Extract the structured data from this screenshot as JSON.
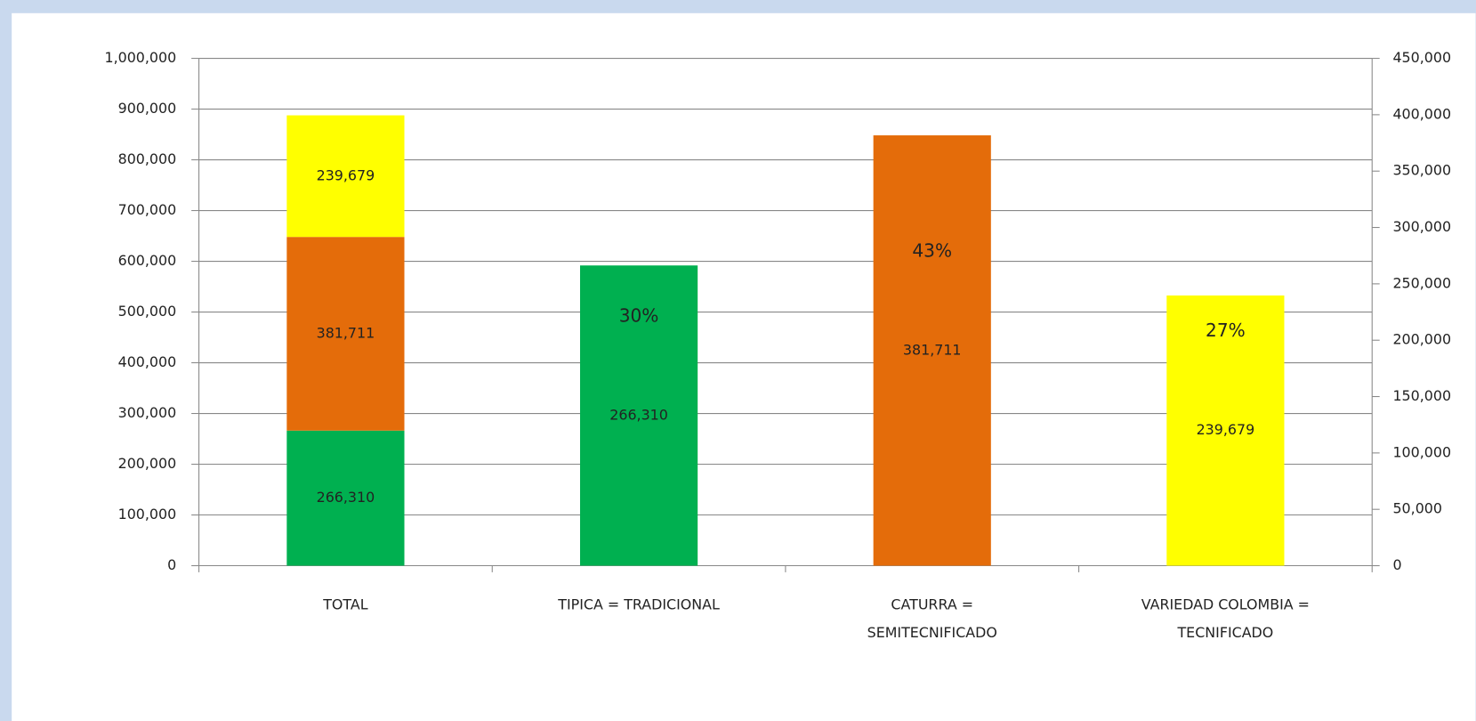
{
  "chart_data": {
    "type": "bar",
    "categories": [
      [
        "TOTAL"
      ],
      [
        "TIPICA = TRADICIONAL"
      ],
      [
        "CATURRA =",
        "SEMITECNIFICADO"
      ],
      [
        "VARIEDAD COLOMBIA =",
        "TECNIFICADO"
      ]
    ],
    "series": [
      {
        "color": "#00b050",
        "axis": "y",
        "stacked": true,
        "values": [
          266310,
          null,
          null,
          null
        ],
        "value_labels": [
          "266,310",
          null,
          null,
          null
        ]
      },
      {
        "color": "#e46c0a",
        "axis": "y",
        "stacked": true,
        "values": [
          381711,
          null,
          null,
          null
        ],
        "value_labels": [
          "381,711",
          null,
          null,
          null
        ]
      },
      {
        "color": "#ffff00",
        "axis": "y",
        "stacked": true,
        "values": [
          239679,
          null,
          null,
          null
        ],
        "value_labels": [
          "239,679",
          null,
          null,
          null
        ]
      },
      {
        "colors": [
          null,
          "#00b050",
          "#e46c0a",
          "#ffff00"
        ],
        "axis": "y2",
        "values": [
          null,
          266310,
          381711,
          239679
        ],
        "value_labels": [
          null,
          "266,310",
          "381,711",
          "239,679"
        ],
        "shares": [
          null,
          30,
          43,
          27
        ],
        "share_labels": [
          null,
          "30%",
          "43%",
          "27%"
        ]
      }
    ],
    "ylim": [
      0,
      1000000
    ],
    "yticks": [
      0,
      {
        "value": 100000,
        "label": "100,000"
      },
      {
        "value": 200000,
        "label": "200,000"
      },
      {
        "value": 300000,
        "label": "300,000"
      },
      {
        "value": 400000,
        "label": "400,000"
      },
      {
        "value": 500000,
        "label": "500,000"
      },
      {
        "value": 600000,
        "label": "600,000"
      },
      {
        "value": 700000,
        "label": "700,000"
      },
      {
        "value": 800000,
        "label": "800,000"
      },
      {
        "value": 900000,
        "label": "900,000"
      },
      {
        "value": 1000000,
        "label": "1,000,000"
      }
    ],
    "y2lim": [
      0,
      450000
    ],
    "y2ticks": [
      0,
      {
        "value": 50000,
        "label": "50,000"
      },
      {
        "value": 100000,
        "label": "100,000"
      },
      {
        "value": 150000,
        "label": "150,000"
      },
      {
        "value": 200000,
        "label": "200,000"
      },
      {
        "value": 250000,
        "label": "250,000"
      },
      {
        "value": 300000,
        "label": "300,000"
      },
      {
        "value": 350000,
        "label": "350,000"
      },
      {
        "value": 400000,
        "label": "400,000"
      },
      {
        "value": 450000,
        "label": "450,000"
      }
    ],
    "grid": true
  }
}
